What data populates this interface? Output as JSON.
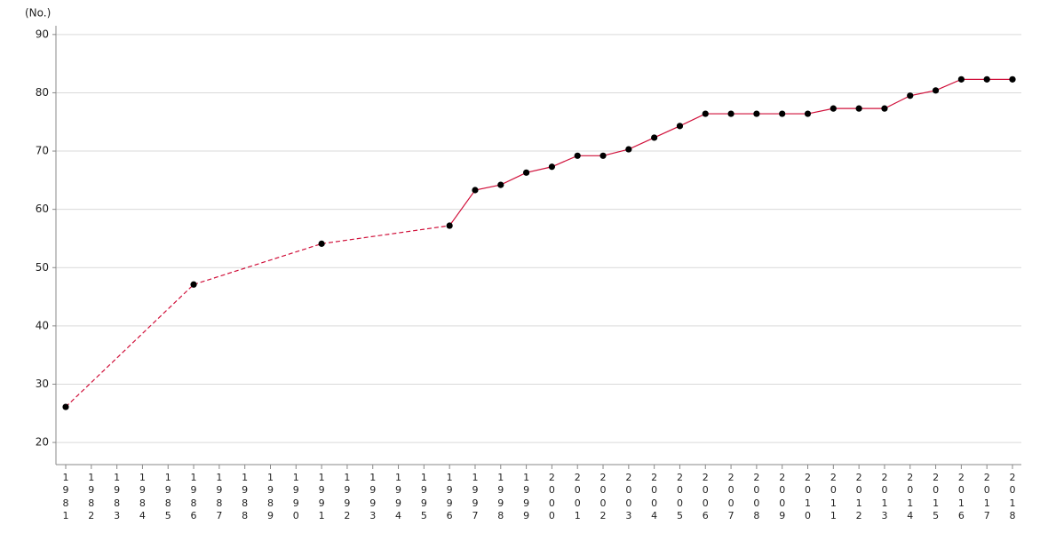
{
  "chart_data": {
    "type": "line",
    "y_label": "(No.)",
    "categories": [
      "1981",
      "1982",
      "1983",
      "1984",
      "1985",
      "1986",
      "1987",
      "1988",
      "1989",
      "1990",
      "1991",
      "1992",
      "1993",
      "1994",
      "1995",
      "1996",
      "1997",
      "1998",
      "1999",
      "2000",
      "2001",
      "2002",
      "2003",
      "2004",
      "2005",
      "2006",
      "2007",
      "2008",
      "2009",
      "2010",
      "2011",
      "2012",
      "2013",
      "2014",
      "2015",
      "2016",
      "2017",
      "2018"
    ],
    "series": [
      {
        "color": "#d0103a",
        "values": [
          26.1,
          null,
          null,
          null,
          null,
          47.1,
          null,
          null,
          null,
          null,
          54.1,
          null,
          null,
          null,
          null,
          57.2,
          63.3,
          64.2,
          66.3,
          67.3,
          69.2,
          69.2,
          70.3,
          72.3,
          74.3,
          76.4,
          76.4,
          76.4,
          76.4,
          76.4,
          77.3,
          77.3,
          77.3,
          79.5,
          80.4,
          82.3,
          82.3,
          82.3
        ]
      }
    ],
    "ylim": [
      16.2,
      91.5
    ],
    "yticks": [
      20,
      30,
      40,
      50,
      60,
      70,
      80,
      90
    ],
    "grid": true
  }
}
